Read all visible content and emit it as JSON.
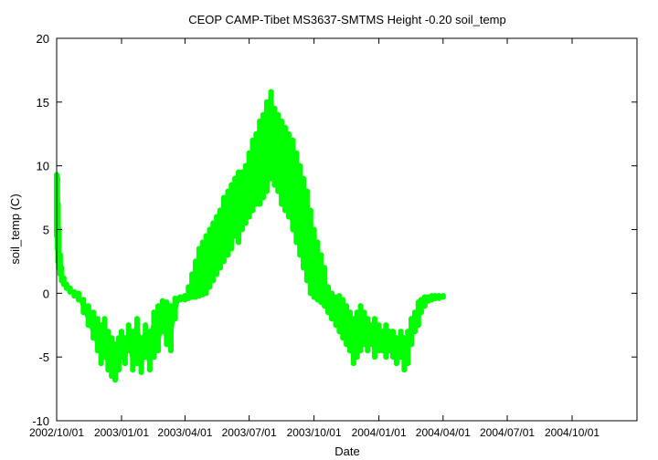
{
  "chart_data": {
    "type": "scatter",
    "title": "CEOP CAMP-Tibet MS3637-SMTMS Height -0.20 soil_temp",
    "xlabel": "Date",
    "ylabel": "soil_temp (C)",
    "xlim": [
      "2002-10-01",
      "2005-01-01"
    ],
    "ylim": [
      -10,
      20
    ],
    "x_ticks": [
      "2002-10-01",
      "2003-01-01",
      "2003-04-01",
      "2003-07-01",
      "2003-10-01",
      "2004-01-01",
      "2004-04-01",
      "2004-07-01",
      "2004-10-01"
    ],
    "x_tick_labels": [
      "2002/10/01",
      "2003/01/01",
      "2003/04/01",
      "2003/07/01",
      "2003/10/01",
      "2004/01/01",
      "2004/04/01",
      "2004/07/01",
      "2004/10/01"
    ],
    "y_ticks": [
      -10,
      -5,
      0,
      5,
      10,
      15,
      20
    ],
    "y_tick_labels": [
      "-10",
      "-5",
      "0",
      "5",
      "10",
      "15",
      "20"
    ],
    "grid": false,
    "legend": "none",
    "marker_color": "#00ff00",
    "series": [
      {
        "x": [
          "2002-10-01",
          "2002-10-02",
          "2002-10-03",
          "2002-10-04",
          "2002-10-06",
          "2002-10-08",
          "2002-10-11",
          "2002-10-15",
          "2002-10-20",
          "2002-10-26",
          "2002-11-01",
          "2002-11-08",
          "2002-11-15",
          "2002-11-22",
          "2002-11-28",
          "2002-12-03",
          "2002-12-08",
          "2002-12-13",
          "2002-12-18",
          "2002-12-23",
          "2002-12-28",
          "2003-01-01",
          "2003-01-06",
          "2003-01-11",
          "2003-01-17",
          "2003-01-23",
          "2003-01-29",
          "2003-02-04",
          "2003-02-10",
          "2003-02-16",
          "2003-02-22",
          "2003-02-28",
          "2003-03-06",
          "2003-03-12",
          "2003-03-18",
          "2003-03-25",
          "2003-04-01",
          "2003-04-06",
          "2003-04-11",
          "2003-04-16",
          "2003-04-21",
          "2003-04-26",
          "2003-05-01",
          "2003-05-06",
          "2003-05-11",
          "2003-05-16",
          "2003-05-21",
          "2003-05-26",
          "2003-06-01",
          "2003-06-06",
          "2003-06-11",
          "2003-06-16",
          "2003-06-21",
          "2003-06-26",
          "2003-07-01",
          "2003-07-06",
          "2003-07-11",
          "2003-07-16",
          "2003-07-21",
          "2003-07-26",
          "2003-08-01",
          "2003-08-06",
          "2003-08-11",
          "2003-08-16",
          "2003-08-21",
          "2003-08-26",
          "2003-09-01",
          "2003-09-06",
          "2003-09-11",
          "2003-09-16",
          "2003-09-21",
          "2003-09-26",
          "2003-10-01",
          "2003-10-06",
          "2003-10-11",
          "2003-10-16",
          "2003-10-21",
          "2003-10-26",
          "2003-11-01",
          "2003-11-06",
          "2003-11-11",
          "2003-11-16",
          "2003-11-21",
          "2003-11-26",
          "2003-12-01",
          "2003-12-06",
          "2003-12-11",
          "2003-12-16",
          "2003-12-21",
          "2003-12-26",
          "2004-01-01",
          "2004-01-06",
          "2004-01-11",
          "2004-01-16",
          "2004-01-21",
          "2004-01-26",
          "2004-02-01",
          "2004-02-06",
          "2004-02-11",
          "2004-02-16",
          "2004-02-21",
          "2004-02-26",
          "2004-03-01",
          "2004-03-06",
          "2004-03-11",
          "2004-03-16",
          "2004-03-21",
          "2004-03-26",
          "2004-04-01"
        ],
        "y_min": [
          4.5,
          3.5,
          2.5,
          2.0,
          1.5,
          1.0,
          0.7,
          0.4,
          0.1,
          -0.2,
          -0.5,
          -1.5,
          -2.5,
          -3.5,
          -4.5,
          -5.5,
          -5.0,
          -6.0,
          -6.5,
          -6.8,
          -6.0,
          -5.0,
          -5.5,
          -4.5,
          -6.0,
          -5.5,
          -6.2,
          -5.0,
          -6.0,
          -5.0,
          -4.5,
          -3.0,
          -4.0,
          -4.5,
          -2.0,
          -0.5,
          -0.5,
          -0.4,
          -0.3,
          -0.3,
          -0.2,
          -0.1,
          0.0,
          0.5,
          1.0,
          1.5,
          2.0,
          2.5,
          3.0,
          3.5,
          4.5,
          4.0,
          5.0,
          5.5,
          6.0,
          6.5,
          7.0,
          7.0,
          7.5,
          8.0,
          9.0,
          8.5,
          8.0,
          7.0,
          6.5,
          6.0,
          5.0,
          4.0,
          3.0,
          2.0,
          1.0,
          0.0,
          -0.3,
          -0.5,
          -0.7,
          -1.0,
          -1.5,
          -2.0,
          -2.5,
          -3.0,
          -3.5,
          -4.0,
          -4.5,
          -5.5,
          -5.0,
          -4.5,
          -4.0,
          -4.5,
          -4.0,
          -5.0,
          -4.5,
          -4.5,
          -5.0,
          -4.5,
          -5.0,
          -5.5,
          -5.0,
          -6.0,
          -5.5,
          -4.0,
          -3.0,
          -2.5,
          -1.5,
          -1.0,
          -0.6,
          -0.5,
          -0.4,
          -0.4,
          -0.3
        ],
        "y_max": [
          9.3,
          9.0,
          7.0,
          5.0,
          3.0,
          2.0,
          1.2,
          0.7,
          0.4,
          0.1,
          0.0,
          -0.5,
          -1.0,
          -1.5,
          -2.0,
          -2.5,
          -2.0,
          -3.0,
          -3.5,
          -4.0,
          -3.5,
          -3.0,
          -3.5,
          -2.5,
          -3.0,
          -2.0,
          -3.5,
          -2.5,
          -3.0,
          -1.5,
          -1.0,
          -0.6,
          -0.7,
          -1.0,
          -0.4,
          -0.3,
          -0.2,
          0.5,
          1.5,
          2.5,
          3.5,
          4.0,
          4.5,
          5.0,
          5.5,
          6.0,
          6.5,
          7.5,
          8.0,
          8.5,
          9.0,
          9.5,
          9.5,
          10.0,
          11.0,
          12.0,
          12.5,
          13.5,
          14.0,
          15.0,
          15.8,
          14.5,
          14.0,
          13.5,
          13.0,
          12.5,
          12.0,
          11.0,
          10.0,
          9.0,
          8.0,
          6.5,
          5.0,
          4.0,
          3.0,
          2.0,
          0.5,
          0.0,
          -0.3,
          -0.2,
          -0.5,
          -1.0,
          -1.5,
          -2.0,
          -1.5,
          -1.0,
          -1.5,
          -2.0,
          -2.5,
          -2.0,
          -2.5,
          -3.0,
          -2.5,
          -3.0,
          -3.0,
          -3.5,
          -3.0,
          -3.5,
          -3.0,
          -2.0,
          -1.5,
          -0.7,
          -0.5,
          -0.3,
          -0.3,
          -0.2,
          -0.2,
          -0.2,
          -0.2
        ]
      }
    ]
  }
}
